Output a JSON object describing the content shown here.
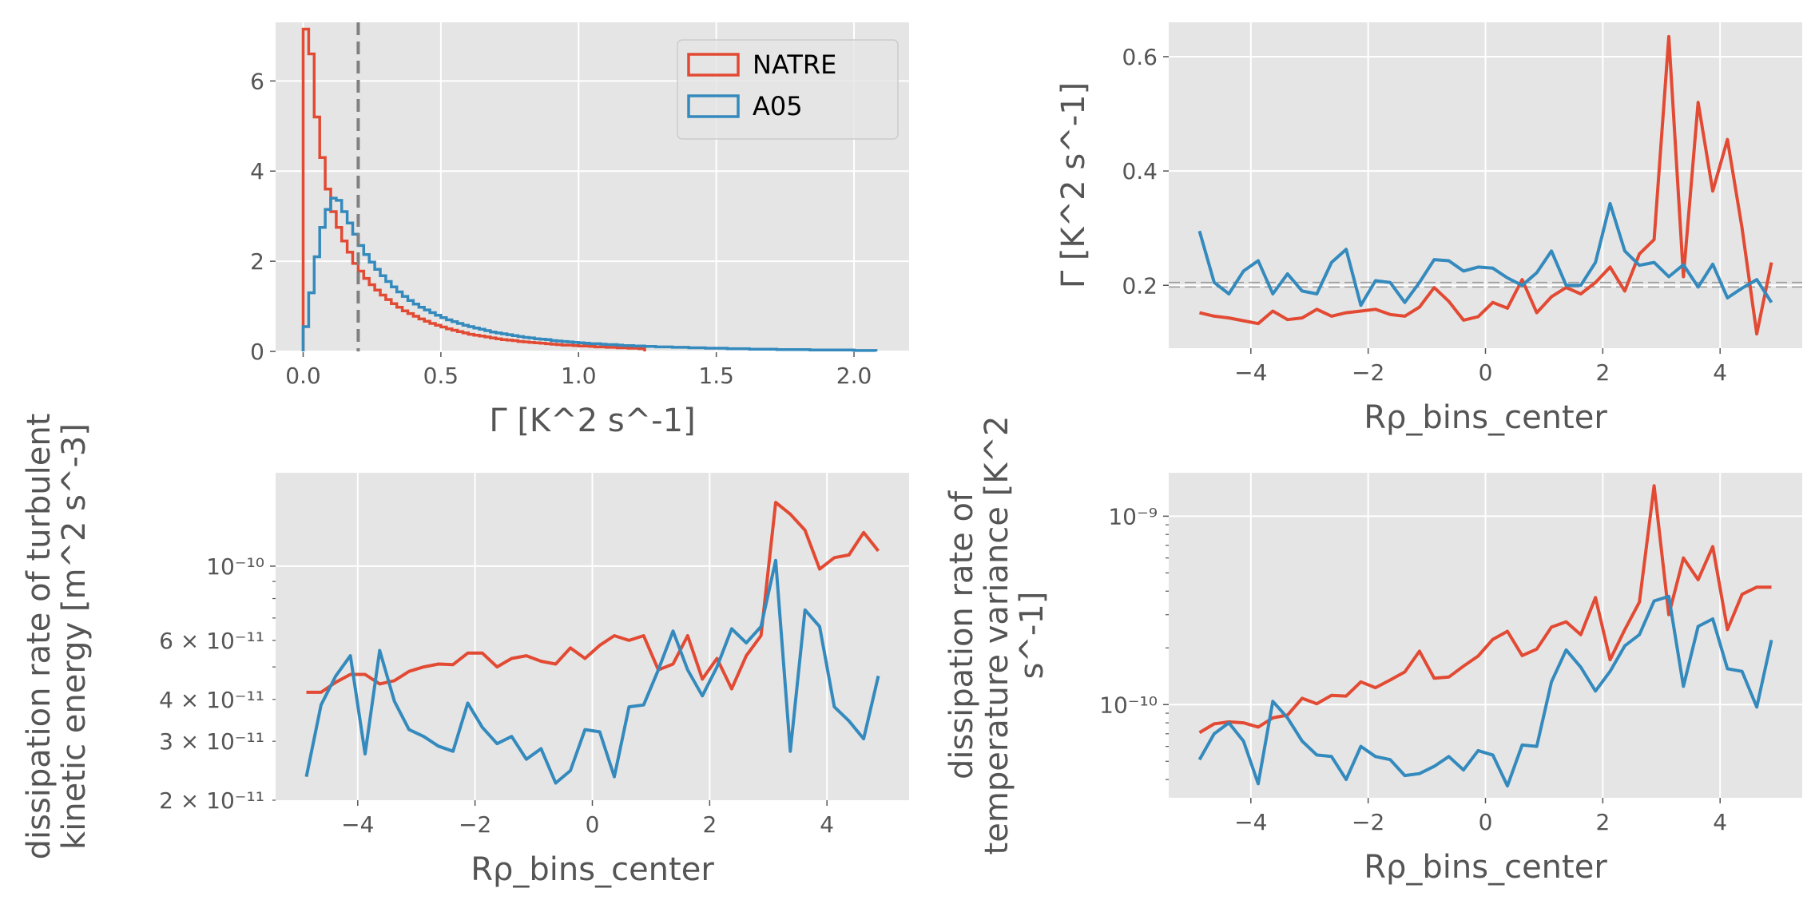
{
  "colors": {
    "natre": "#E24A33",
    "a05": "#348ABD",
    "panel_bg": "#E5E5E5",
    "grid": "#FFFFFF",
    "vline": "#808080",
    "hline": "#999999"
  },
  "legend": {
    "entries": [
      "NATRE",
      "A05"
    ],
    "placement": "upper right"
  },
  "chart_data": [
    {
      "type": "histogram",
      "xlabel": "Γ [K^2 s^-1]",
      "ylabel": "",
      "xlim": [
        -0.1,
        2.2
      ],
      "ylim": [
        0,
        7.3
      ],
      "xticks": [
        0.0,
        0.5,
        1.0,
        1.5,
        2.0
      ],
      "xtick_labels": [
        "0.0",
        "0.5",
        "1.0",
        "1.5",
        "2.0"
      ],
      "yticks": [
        0,
        2,
        4,
        6
      ],
      "ytick_labels": [
        "0",
        "2",
        "4",
        "6"
      ],
      "vline": 0.2,
      "bin_width": 0.02,
      "series": [
        {
          "name": "NATRE",
          "bin_start": 0.0,
          "values": [
            7.15,
            6.6,
            5.2,
            4.3,
            3.6,
            3.1,
            2.75,
            2.45,
            2.2,
            1.95,
            1.78,
            1.62,
            1.48,
            1.36,
            1.25,
            1.15,
            1.06,
            0.98,
            0.9,
            0.84,
            0.78,
            0.72,
            0.67,
            0.62,
            0.58,
            0.54,
            0.5,
            0.47,
            0.44,
            0.41,
            0.38,
            0.36,
            0.34,
            0.32,
            0.3,
            0.28,
            0.26,
            0.25,
            0.24,
            0.22,
            0.21,
            0.2,
            0.19,
            0.18,
            0.17,
            0.16,
            0.15,
            0.14,
            0.14,
            0.13,
            0.12,
            0.12,
            0.11,
            0.1,
            0.1,
            0.09,
            0.09,
            0.08,
            0.08,
            0.07,
            0.07,
            0.06
          ]
        },
        {
          "name": "A05",
          "bin_start": 0.0,
          "values": [
            0.55,
            1.3,
            2.1,
            2.75,
            3.15,
            3.4,
            3.35,
            3.1,
            2.85,
            2.6,
            2.35,
            2.15,
            1.98,
            1.82,
            1.68,
            1.55,
            1.43,
            1.32,
            1.22,
            1.13,
            1.05,
            0.98,
            0.92,
            0.86,
            0.8,
            0.75,
            0.7,
            0.66,
            0.62,
            0.58,
            0.55,
            0.52,
            0.49,
            0.46,
            0.43,
            0.41,
            0.39,
            0.37,
            0.35,
            0.33,
            0.31,
            0.3,
            0.28,
            0.27,
            0.26,
            0.24,
            0.23,
            0.22,
            0.21,
            0.2,
            0.19,
            0.18,
            0.17,
            0.17,
            0.16,
            0.15,
            0.15,
            0.14,
            0.13,
            0.13,
            0.12,
            0.12,
            0.11,
            0.11,
            0.1,
            0.1,
            0.1,
            0.09,
            0.09,
            0.09,
            0.08,
            0.08,
            0.08,
            0.07,
            0.07,
            0.07,
            0.07,
            0.06,
            0.06,
            0.06,
            0.06,
            0.05,
            0.05,
            0.05,
            0.05,
            0.05,
            0.04,
            0.04,
            0.04,
            0.04,
            0.04,
            0.04,
            0.03,
            0.03,
            0.03,
            0.03,
            0.03,
            0.03,
            0.03,
            0.03,
            0.02,
            0.02,
            0.02,
            0.02
          ]
        }
      ]
    },
    {
      "type": "line",
      "xlabel": "Rρ_bins_center",
      "ylabel": "Γ [K^2 s^-1]",
      "xlim": [
        -5.4,
        5.4
      ],
      "ylim": [
        0.09,
        0.66
      ],
      "xticks": [
        -4,
        -2,
        0,
        2,
        4
      ],
      "xtick_labels": [
        "−4",
        "−2",
        "0",
        "2",
        "4"
      ],
      "yticks": [
        0.2,
        0.4,
        0.6
      ],
      "ytick_labels": [
        "0.2",
        "0.4",
        "0.6"
      ],
      "hlines": [
        0.197,
        0.205
      ],
      "x": [
        -4.875,
        -4.625,
        -4.375,
        -4.125,
        -3.875,
        -3.625,
        -3.375,
        -3.125,
        -2.875,
        -2.625,
        -2.375,
        -2.125,
        -1.875,
        -1.625,
        -1.375,
        -1.125,
        -0.875,
        -0.625,
        -0.375,
        -0.125,
        0.125,
        0.375,
        0.625,
        0.875,
        1.125,
        1.375,
        1.625,
        1.875,
        2.125,
        2.375,
        2.625,
        2.875,
        3.125,
        3.375,
        3.625,
        3.875,
        4.125,
        4.375,
        4.625,
        4.875
      ],
      "series": [
        {
          "name": "NATRE",
          "values": [
            0.152,
            0.146,
            0.143,
            0.138,
            0.133,
            0.155,
            0.14,
            0.143,
            0.158,
            0.146,
            0.152,
            0.155,
            0.158,
            0.149,
            0.146,
            0.162,
            0.196,
            0.172,
            0.139,
            0.145,
            0.17,
            0.16,
            0.21,
            0.152,
            0.18,
            0.196,
            0.185,
            0.205,
            0.232,
            0.19,
            0.255,
            0.28,
            0.635,
            0.215,
            0.52,
            0.365,
            0.455,
            0.3,
            0.115,
            0.24
          ]
        },
        {
          "name": "A05",
          "values": [
            0.295,
            0.205,
            0.185,
            0.225,
            0.243,
            0.185,
            0.22,
            0.19,
            0.185,
            0.24,
            0.263,
            0.165,
            0.208,
            0.205,
            0.17,
            0.205,
            0.245,
            0.243,
            0.225,
            0.232,
            0.23,
            0.213,
            0.2,
            0.222,
            0.26,
            0.2,
            0.2,
            0.24,
            0.343,
            0.26,
            0.235,
            0.24,
            0.215,
            0.236,
            0.197,
            0.237,
            0.178,
            0.195,
            0.21,
            0.17
          ]
        }
      ]
    },
    {
      "type": "line",
      "xlabel": "Rρ_bins_center",
      "ylabel": "dissipation rate of turbulent kinetic energy [m^2 s^-3]",
      "yscale": "log",
      "xlim": [
        -5.4,
        5.4
      ],
      "ylim": [
        2e-11,
        1.9e-10
      ],
      "xticks": [
        -4,
        -2,
        0,
        2,
        4
      ],
      "xtick_labels": [
        "−4",
        "−2",
        "0",
        "2",
        "4"
      ],
      "ytick_labels": [
        "2 × 10⁻¹¹",
        "3 × 10⁻¹¹",
        "4 × 10⁻¹¹",
        "6 × 10⁻¹¹",
        "10⁻¹⁰"
      ],
      "x": [
        -4.875,
        -4.625,
        -4.375,
        -4.125,
        -3.875,
        -3.625,
        -3.375,
        -3.125,
        -2.875,
        -2.625,
        -2.375,
        -2.125,
        -1.875,
        -1.625,
        -1.375,
        -1.125,
        -0.875,
        -0.625,
        -0.375,
        -0.125,
        0.125,
        0.375,
        0.625,
        0.875,
        1.125,
        1.375,
        1.625,
        1.875,
        2.125,
        2.375,
        2.625,
        2.875,
        3.125,
        3.375,
        3.625,
        3.875,
        4.125,
        4.375,
        4.625,
        4.875
      ],
      "series": [
        {
          "name": "NATRE",
          "values": [
            4.2e-11,
            4.2e-11,
            4.5e-11,
            4.75e-11,
            4.75e-11,
            4.45e-11,
            4.55e-11,
            4.85e-11,
            5e-11,
            5.1e-11,
            5.08e-11,
            5.5e-11,
            5.5e-11,
            5e-11,
            5.3e-11,
            5.4e-11,
            5.2e-11,
            5.1e-11,
            5.7e-11,
            5.3e-11,
            5.8e-11,
            6.2e-11,
            6e-11,
            6.2e-11,
            4.9e-11,
            5.1e-11,
            6.2e-11,
            4.6e-11,
            5.3e-11,
            4.3e-11,
            5.4e-11,
            6.2e-11,
            1.55e-10,
            1.43e-10,
            1.28e-10,
            9.8e-11,
            1.06e-10,
            1.08e-10,
            1.26e-10,
            1.11e-10
          ]
        },
        {
          "name": "A05",
          "values": [
            2.35e-11,
            3.85e-11,
            4.7e-11,
            5.4e-11,
            2.75e-11,
            5.6e-11,
            3.95e-11,
            3.25e-11,
            3.1e-11,
            2.9e-11,
            2.8e-11,
            3.9e-11,
            3.3e-11,
            2.95e-11,
            3.1e-11,
            2.65e-11,
            2.85e-11,
            2.25e-11,
            2.45e-11,
            3.25e-11,
            3.2e-11,
            2.35e-11,
            3.8e-11,
            3.85e-11,
            4.9e-11,
            6.4e-11,
            4.9e-11,
            4.1e-11,
            5e-11,
            6.5e-11,
            5.9e-11,
            6.6e-11,
            1.04e-10,
            2.8e-11,
            7.4e-11,
            6.6e-11,
            3.8e-11,
            3.45e-11,
            3.05e-11,
            4.7e-11
          ]
        }
      ]
    },
    {
      "type": "line",
      "xlabel": "Rρ_bins_center",
      "ylabel": "dissipation rate of temperature variance [K^2 s^-1]",
      "yscale": "log",
      "xlim": [
        -5.4,
        5.4
      ],
      "ylim": [
        3.2e-11,
        1.7e-09
      ],
      "xticks": [
        -4,
        -2,
        0,
        2,
        4
      ],
      "xtick_labels": [
        "−4",
        "−2",
        "0",
        "2",
        "4"
      ],
      "ytick_labels": [
        "10⁻¹⁰",
        "10⁻⁹"
      ],
      "x": [
        -4.875,
        -4.625,
        -4.375,
        -4.125,
        -3.875,
        -3.625,
        -3.375,
        -3.125,
        -2.875,
        -2.625,
        -2.375,
        -2.125,
        -1.875,
        -1.625,
        -1.375,
        -1.125,
        -0.875,
        -0.625,
        -0.375,
        -0.125,
        0.125,
        0.375,
        0.625,
        0.875,
        1.125,
        1.375,
        1.625,
        1.875,
        2.125,
        2.375,
        2.625,
        2.875,
        3.125,
        3.375,
        3.625,
        3.875,
        4.125,
        4.375,
        4.625,
        4.875
      ],
      "series": [
        {
          "name": "NATRE",
          "values": [
            7.1e-11,
            7.9e-11,
            8.1e-11,
            8e-11,
            7.6e-11,
            8.5e-11,
            8.8e-11,
            1.08e-10,
            1.01e-10,
            1.12e-10,
            1.11e-10,
            1.32e-10,
            1.23e-10,
            1.35e-10,
            1.49e-10,
            1.92e-10,
            1.38e-10,
            1.4e-10,
            1.6e-10,
            1.81e-10,
            2.22e-10,
            2.45e-10,
            1.82e-10,
            1.97e-10,
            2.58e-10,
            2.75e-10,
            2.35e-10,
            3.7e-10,
            1.73e-10,
            2.5e-10,
            3.5e-10,
            1.45e-09,
            3e-10,
            6e-10,
            4.6e-10,
            6.9e-10,
            2.5e-10,
            3.85e-10,
            4.2e-10,
            4.2e-10
          ]
        },
        {
          "name": "A05",
          "values": [
            5.1e-11,
            7e-11,
            8e-11,
            6.4e-11,
            3.8e-11,
            1.04e-10,
            8.5e-11,
            6.4e-11,
            5.4e-11,
            5.3e-11,
            4e-11,
            6e-11,
            5.3e-11,
            5.1e-11,
            4.2e-11,
            4.3e-11,
            4.7e-11,
            5.3e-11,
            4.5e-11,
            5.7e-11,
            5.4e-11,
            3.7e-11,
            6.1e-11,
            6e-11,
            1.32e-10,
            1.95e-10,
            1.58e-10,
            1.18e-10,
            1.5e-10,
            2.05e-10,
            2.35e-10,
            3.55e-10,
            3.75e-10,
            1.25e-10,
            2.6e-10,
            2.85e-10,
            1.55e-10,
            1.5e-10,
            9.7e-11,
            2.2e-10
          ]
        }
      ]
    }
  ]
}
